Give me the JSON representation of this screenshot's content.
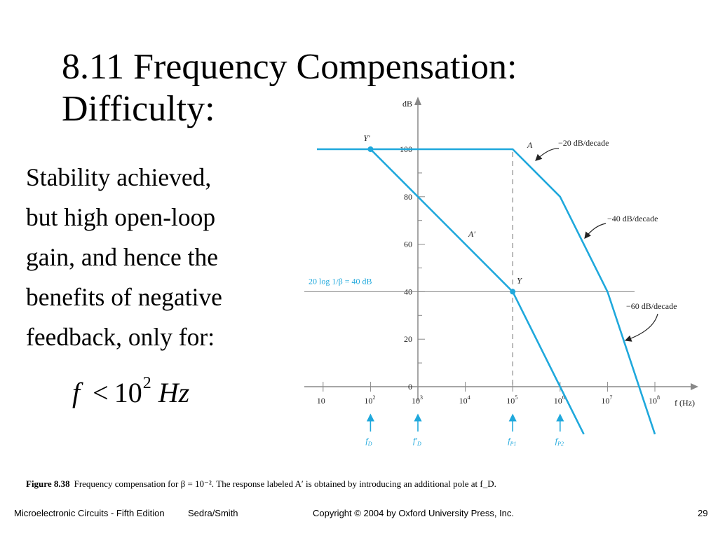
{
  "slide": {
    "title_line1": "8.11 Frequency Compensation:",
    "title_line2": "Difficulty:",
    "body_lines": [
      "Stability achieved,",
      "but high open-loop",
      "gain, and hence the",
      "benefits of negative",
      "feedback, only for:"
    ],
    "formula": {
      "var": "f",
      "op": "<",
      "base": "10",
      "exp": "2",
      "unit": "Hz"
    }
  },
  "caption": {
    "label": "Figure 8.38",
    "text": "Frequency compensation for β = 10⁻². The response labeled A′ is obtained by introducing an additional pole at f_D."
  },
  "footer": {
    "left": "Microelectronic Circuits - Fifth Edition",
    "authors": "Sedra/Smith",
    "center": "Copyright © 2004 by Oxford University Press, Inc.",
    "page": "29"
  },
  "colors": {
    "curve": "#1fa8dc",
    "axis": "#888888",
    "ink": "#222222"
  },
  "chart_data": {
    "type": "line",
    "ylabel": "dB",
    "xlabel": "f (Hz)",
    "x_log": true,
    "xlim_log10": [
      1,
      8.2
    ],
    "ylim": [
      0,
      107
    ],
    "y_ticks": [
      {
        "v": 0,
        "label": "0"
      },
      {
        "v": 20,
        "label": "20"
      },
      {
        "v": 40,
        "label": "40"
      },
      {
        "v": 60,
        "label": "60"
      },
      {
        "v": 80,
        "label": "80"
      },
      {
        "v": 100,
        "label": "100"
      }
    ],
    "x_ticks": [
      {
        "e": 1,
        "base": "10",
        "exp": ""
      },
      {
        "e": 2,
        "base": "10",
        "exp": "2"
      },
      {
        "e": 3,
        "base": "10",
        "exp": "3"
      },
      {
        "e": 4,
        "base": "10",
        "exp": "4"
      },
      {
        "e": 5,
        "base": "10",
        "exp": "5"
      },
      {
        "e": 6,
        "base": "10",
        "exp": "6"
      },
      {
        "e": 7,
        "base": "10",
        "exp": "7"
      },
      {
        "e": 8,
        "base": "10",
        "exp": "8"
      }
    ],
    "series": [
      {
        "name": "A",
        "points": [
          [
            0.0,
            100
          ],
          [
            5.0,
            100
          ],
          [
            6.0,
            80
          ],
          [
            7.0,
            40
          ],
          [
            8.0,
            -20
          ]
        ]
      },
      {
        "name": "A′",
        "points": [
          [
            2.0,
            100
          ],
          [
            5.0,
            40
          ],
          [
            6.0,
            0
          ],
          [
            6.5,
            -20
          ]
        ]
      }
    ],
    "markers": [
      {
        "label": "Y′",
        "log_f": 2.0,
        "db": 100
      },
      {
        "label": "Y",
        "log_f": 5.0,
        "db": 40
      }
    ],
    "feedback_line": {
      "db": 40,
      "label": "20 log 1/β = 40 dB"
    },
    "annotations": [
      "−20 dB/decade",
      "−40 dB/decade",
      "−60 dB/decade"
    ],
    "frequency_markers": [
      {
        "log_f": 2,
        "label": "f",
        "sub": "D"
      },
      {
        "log_f": 3,
        "label": "f′",
        "sub": "D"
      },
      {
        "log_f": 5,
        "label": "f",
        "sub": "P1"
      },
      {
        "log_f": 6,
        "label": "f",
        "sub": "P2"
      }
    ],
    "dashed_line_log_f": 5
  }
}
